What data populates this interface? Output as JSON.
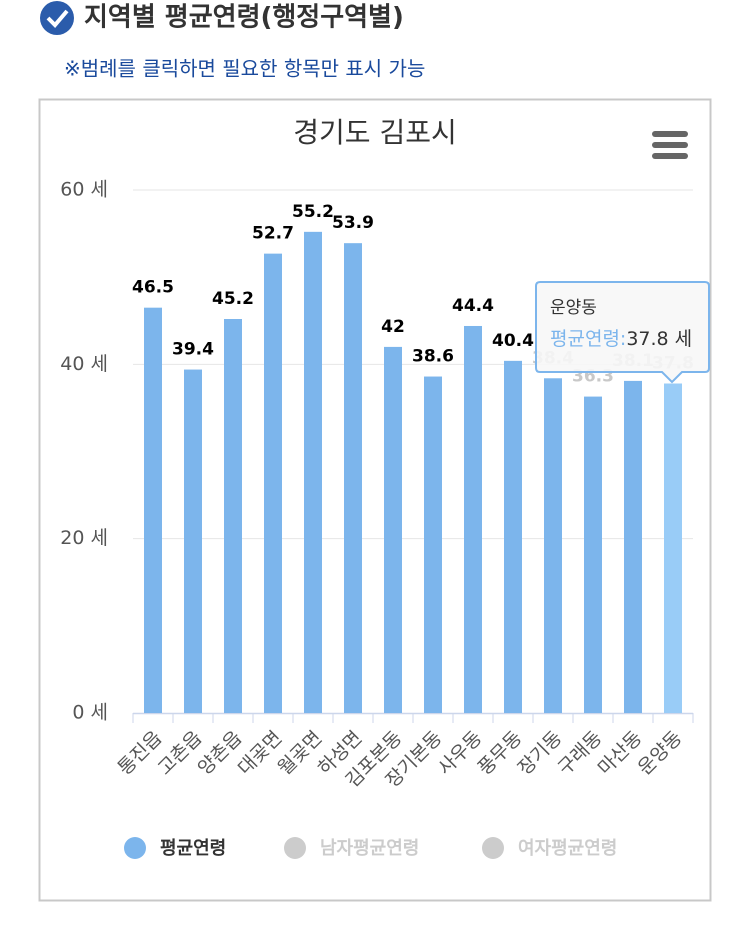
{
  "heading": "지역별 평균연령(행정구역별)",
  "note": "※범례를 클릭하면 필요한 항목만 표시 가능",
  "chart_data": {
    "type": "bar",
    "title": "경기도 김포시",
    "categories": [
      "통진읍",
      "고촌읍",
      "양촌읍",
      "대곶면",
      "월곶면",
      "하성면",
      "김포본동",
      "장기본동",
      "사우동",
      "풍무동",
      "장기동",
      "구래동",
      "마산동",
      "운양동"
    ],
    "series": [
      {
        "name": "평균연령",
        "color": "#7cb5ec",
        "visible": true,
        "values": [
          46.5,
          39.4,
          45.2,
          52.7,
          55.2,
          53.9,
          42,
          38.6,
          44.4,
          40.4,
          38.4,
          36.3,
          38.1,
          37.8
        ]
      },
      {
        "name": "남자평균연령",
        "color": "#cccccc",
        "visible": false,
        "values": [
          null,
          null,
          null,
          null,
          null,
          null,
          null,
          null,
          null,
          null,
          null,
          null,
          null,
          null
        ]
      },
      {
        "name": "여자평균연령",
        "color": "#cccccc",
        "visible": false,
        "values": [
          null,
          null,
          null,
          null,
          null,
          null,
          null,
          null,
          null,
          null,
          null,
          null,
          null,
          null
        ]
      }
    ],
    "ylim": [
      0,
      60
    ],
    "yticks": [
      {
        "value": 0,
        "label": "0 세"
      },
      {
        "value": 20,
        "label": "20 세"
      },
      {
        "value": 40,
        "label": "40 세"
      },
      {
        "value": 60,
        "label": "60 세"
      }
    ],
    "grid": true,
    "hover_color": "#99ccf7",
    "tooltip": {
      "title": "운양동",
      "series": "평균연령:",
      "value": "37.8 세"
    }
  }
}
